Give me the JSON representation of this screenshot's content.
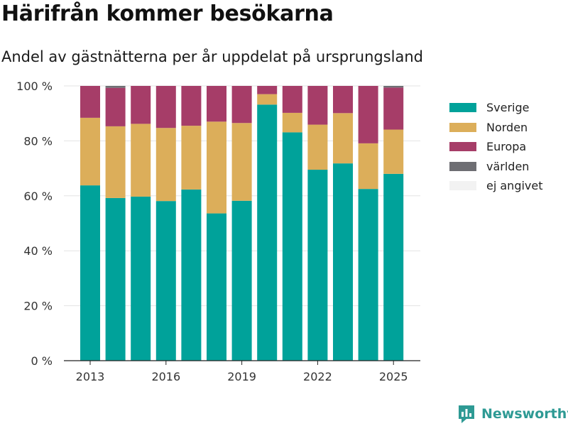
{
  "header": {
    "title": "Härifrån kommer besökarna",
    "subtitle": "Andel av gästnätterna per år uppdelat på ursprungsland"
  },
  "brand": {
    "name": "Newsworthy",
    "icon": "newsworthy-logo-icon",
    "color": "#2e9a94"
  },
  "chart_data": {
    "type": "bar",
    "stacked": true,
    "title": "Härifrån kommer besökarna",
    "subtitle": "Andel av gästnätterna per år uppdelat på ursprungsland",
    "xlabel": "",
    "ylabel": "",
    "categories": [
      2013,
      2014,
      2015,
      2016,
      2017,
      2018,
      2019,
      2020,
      2021,
      2022,
      2023,
      2024,
      2025
    ],
    "x_ticks": [
      "2013",
      "2016",
      "2019",
      "2022",
      "2025"
    ],
    "y_ticks": [
      0,
      20,
      40,
      60,
      80,
      100
    ],
    "y_tick_suffix": " %",
    "ylim": [
      0,
      100
    ],
    "grid": "horizontal",
    "legend_position": "right",
    "series": [
      {
        "name": "Sverige",
        "color": "#00a29a",
        "values": [
          63.8,
          59.2,
          59.7,
          58.1,
          62.3,
          53.6,
          58.2,
          93.2,
          83.1,
          69.5,
          71.8,
          62.5,
          68.0
        ]
      },
      {
        "name": "Norden",
        "color": "#dcae5a",
        "values": [
          24.6,
          26.1,
          26.5,
          26.6,
          23.2,
          33.4,
          28.3,
          3.8,
          7.1,
          16.4,
          18.3,
          16.6,
          16.1
        ]
      },
      {
        "name": "Europa",
        "color": "#a63d68",
        "values": [
          11.6,
          14.0,
          13.8,
          15.3,
          14.5,
          13.0,
          13.5,
          3.0,
          9.8,
          14.1,
          9.9,
          20.9,
          15.3
        ]
      },
      {
        "name": "världen",
        "color": "#6e6e73",
        "values": [
          0,
          0.7,
          0,
          0,
          0,
          0,
          0,
          0,
          0,
          0,
          0,
          0,
          0.6
        ]
      },
      {
        "name": "ej angivet",
        "color": "#f2f2f2",
        "values": [
          0,
          0,
          0,
          0,
          0,
          0,
          0,
          0,
          0,
          0,
          0,
          0,
          0
        ]
      }
    ]
  }
}
